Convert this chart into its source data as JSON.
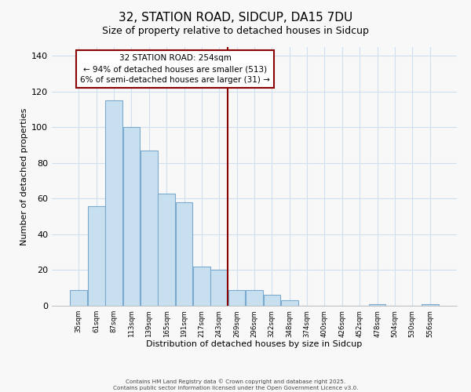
{
  "title": "32, STATION ROAD, SIDCUP, DA15 7DU",
  "subtitle": "Size of property relative to detached houses in Sidcup",
  "xlabel": "Distribution of detached houses by size in Sidcup",
  "ylabel": "Number of detached properties",
  "bar_labels": [
    "35sqm",
    "61sqm",
    "87sqm",
    "113sqm",
    "139sqm",
    "165sqm",
    "191sqm",
    "217sqm",
    "243sqm",
    "269sqm",
    "296sqm",
    "322sqm",
    "348sqm",
    "374sqm",
    "400sqm",
    "426sqm",
    "452sqm",
    "478sqm",
    "504sqm",
    "530sqm",
    "556sqm"
  ],
  "bar_values": [
    9,
    56,
    115,
    100,
    87,
    63,
    58,
    22,
    20,
    9,
    9,
    6,
    3,
    0,
    0,
    0,
    0,
    1,
    0,
    0,
    1
  ],
  "bar_color": "#c8dff0",
  "bar_edge_color": "#7aabcf",
  "ylim": [
    0,
    145
  ],
  "yticks": [
    0,
    20,
    40,
    60,
    80,
    100,
    120,
    140
  ],
  "annotation_title": "32 STATION ROAD: 254sqm",
  "annotation_line1": "← 94% of detached houses are smaller (513)",
  "annotation_line2": "6% of semi-detached houses are larger (31) →",
  "vline_x_idx": 8.5,
  "footer_line1": "Contains HM Land Registry data © Crown copyright and database right 2025.",
  "footer_line2": "Contains public sector information licensed under the Open Government Licence v3.0.",
  "background_color": "#f8f8f8",
  "grid_color": "#d0e0f0",
  "title_fontsize": 11,
  "subtitle_fontsize": 9
}
